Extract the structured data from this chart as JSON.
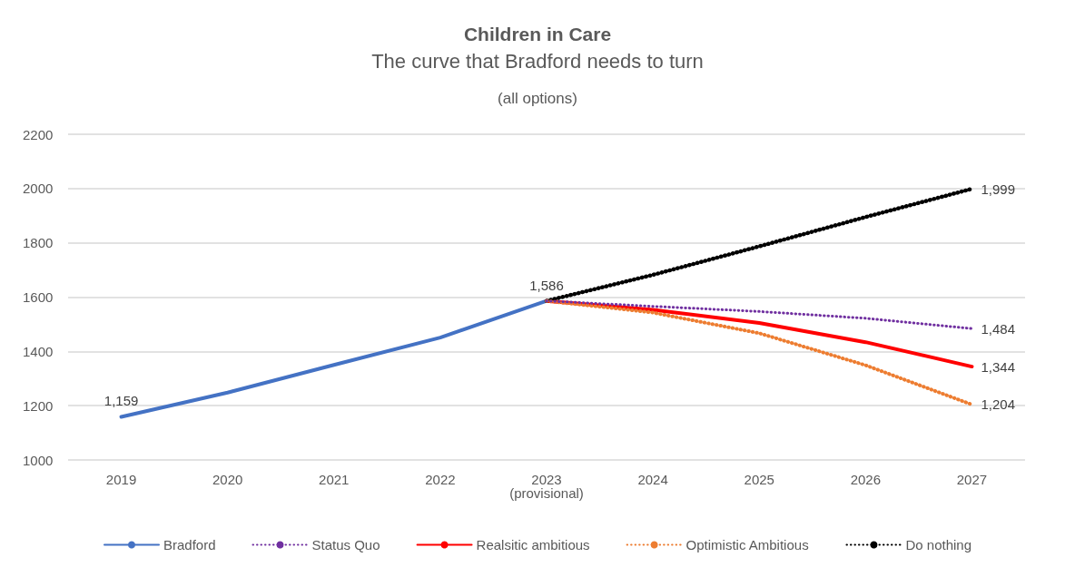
{
  "chart_data": {
    "type": "line",
    "title": "Children in Care",
    "subtitle": "The curve that Bradford needs to turn",
    "annotations": [
      "(all options)"
    ],
    "categories": [
      "2019",
      "2020",
      "2021",
      "2022",
      "2023\n(provisional)",
      "2024",
      "2025",
      "2026",
      "2027"
    ],
    "series": [
      {
        "name": "Bradford",
        "color": "#4472c4",
        "line_style": "solid",
        "values": [
          1159,
          1248,
          1350,
          1451,
          1586,
          null,
          null,
          null,
          null
        ],
        "value_labels": [
          "1,159",
          null,
          null,
          null,
          "1,586",
          null,
          null,
          null,
          null
        ]
      },
      {
        "name": "Status Quo",
        "color": "#7030a0",
        "line_style": "dotted",
        "values": [
          null,
          null,
          null,
          null,
          1586,
          1566,
          1547,
          1522,
          1484
        ],
        "value_labels": [
          null,
          null,
          null,
          null,
          null,
          null,
          null,
          null,
          "1,484"
        ]
      },
      {
        "name": "Realsitic ambitious",
        "color": "#ff0000",
        "line_style": "solid",
        "values": [
          null,
          null,
          null,
          null,
          1586,
          1553,
          1505,
          1434,
          1344
        ],
        "value_labels": [
          null,
          null,
          null,
          null,
          null,
          null,
          null,
          null,
          "1,344"
        ]
      },
      {
        "name": "Optimistic Ambitious",
        "color": "#ed7d31",
        "line_style": "dotted",
        "values": [
          null,
          null,
          null,
          null,
          1586,
          1543,
          1467,
          1349,
          1204
        ],
        "value_labels": [
          null,
          null,
          null,
          null,
          null,
          null,
          null,
          null,
          "1,204"
        ]
      },
      {
        "name": "Do nothing",
        "color": "#000000",
        "line_style": "dotted",
        "values": [
          null,
          null,
          null,
          null,
          1586,
          1682,
          1787,
          1895,
          1999
        ],
        "value_labels": [
          null,
          null,
          null,
          null,
          null,
          null,
          null,
          null,
          "1,999"
        ]
      }
    ],
    "ylim": [
      1000,
      2200
    ],
    "yticks": [
      1000,
      1200,
      1400,
      1600,
      1800,
      2000,
      2200
    ],
    "grid": "y",
    "legend": "bottom",
    "marker": "none"
  }
}
